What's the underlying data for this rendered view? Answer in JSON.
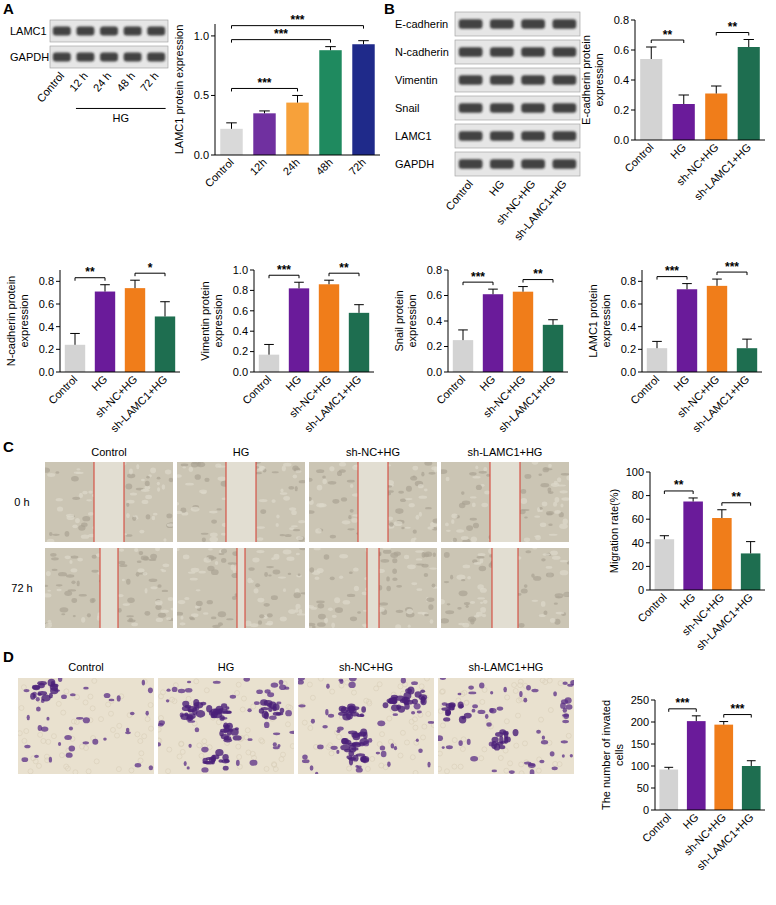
{
  "panel_labels": [
    "A",
    "B",
    "C",
    "D"
  ],
  "blots": [
    {
      "rows": [
        "LAMC1",
        "GAPDH"
      ],
      "lanes": [
        "Control",
        "12 h",
        "24 h",
        "48 h",
        "72 h"
      ],
      "group": {
        "label": "HG",
        "from": "12 h",
        "to": "72 h"
      }
    },
    {
      "rows": [
        "E-cadherin",
        "N-cadherin",
        "Vimentin",
        "Snail",
        "LAMC1",
        "GAPDH"
      ],
      "lanes": [
        "Control",
        "HG",
        "sh-NC+HG",
        "sh-LAMC1+HG"
      ]
    }
  ],
  "images": [
    {
      "type": "scratch",
      "columns": [
        "Control",
        "HG",
        "sh-NC+HG",
        "sh-LAMC1+HG"
      ],
      "rows": [
        "0 h",
        "72 h"
      ]
    },
    {
      "type": "transwell",
      "columns": [
        "Control",
        "HG",
        "sh-NC+HG",
        "sh-LAMC1+HG"
      ]
    }
  ],
  "chart_data": [
    {
      "type": "bar",
      "y_label": "LAMC1 protein expression",
      "categories": [
        "Control",
        "12h",
        "24h",
        "48h",
        "72h"
      ],
      "values": [
        0.22,
        0.35,
        0.44,
        0.88,
        0.93
      ],
      "errors": [
        0.05,
        0.02,
        0.06,
        0.03,
        0.03
      ],
      "colors": [
        "#d9d9d9",
        "#7030a0",
        "#f7a13a",
        "#1f8a5f",
        "#1f2a8a"
      ],
      "ylim": [
        0,
        1.1
      ],
      "yticks": [
        {
          "value": 0,
          "label": "0.0"
        },
        {
          "value": 0.5,
          "label": "0.5"
        },
        {
          "value": 1,
          "label": "1.0"
        }
      ],
      "significance": [
        {
          "between": [
            "Control",
            "24h"
          ],
          "label": "***"
        },
        {
          "between": [
            "Control",
            "48h"
          ],
          "label": "***"
        },
        {
          "between": [
            "Control",
            "72h"
          ],
          "label": "***"
        }
      ]
    },
    {
      "type": "bar",
      "y_label": "E-cadherin protein expression",
      "categories": [
        "Control",
        "HG",
        "sh-NC+HG",
        "sh-LAMC1+HG"
      ],
      "values": [
        0.54,
        0.24,
        0.31,
        0.62
      ],
      "errors": [
        0.08,
        0.06,
        0.05,
        0.05
      ],
      "colors": [
        "#d3d3d3",
        "#6a1b9a",
        "#f07d1a",
        "#1e6e50"
      ],
      "ylim": [
        0,
        0.8
      ],
      "yticks": [
        {
          "value": 0,
          "label": "0.0"
        },
        {
          "value": 0.2,
          "label": "0.2"
        },
        {
          "value": 0.4,
          "label": "0.4"
        },
        {
          "value": 0.6,
          "label": "0.6"
        },
        {
          "value": 0.8,
          "label": "0.8"
        }
      ],
      "significance": [
        {
          "between": [
            "Control",
            "HG"
          ],
          "label": "**"
        },
        {
          "between": [
            "sh-NC+HG",
            "sh-LAMC1+HG"
          ],
          "label": "**"
        }
      ]
    },
    {
      "type": "bar",
      "y_label": "N-cadherin protein expression",
      "categories": [
        "Control",
        "HG",
        "sh-NC+HG",
        "sh-LAMC1+HG"
      ],
      "values": [
        0.24,
        0.71,
        0.74,
        0.49
      ],
      "errors": [
        0.1,
        0.06,
        0.07,
        0.13
      ],
      "colors": [
        "#d3d3d3",
        "#6a1b9a",
        "#f07d1a",
        "#1e6e50"
      ],
      "ylim": [
        0,
        0.9
      ],
      "yticks": [
        {
          "value": 0,
          "label": "0.0"
        },
        {
          "value": 0.2,
          "label": "0.2"
        },
        {
          "value": 0.4,
          "label": "0.4"
        },
        {
          "value": 0.6,
          "label": "0.6"
        },
        {
          "value": 0.8,
          "label": "0.8"
        }
      ],
      "significance": [
        {
          "between": [
            "Control",
            "HG"
          ],
          "label": "**"
        },
        {
          "between": [
            "sh-NC+HG",
            "sh-LAMC1+HG"
          ],
          "label": "*"
        }
      ]
    },
    {
      "type": "bar",
      "y_label": "Vimentin protein expression",
      "categories": [
        "Control",
        "HG",
        "sh-NC+HG",
        "sh-LAMC1+HG"
      ],
      "values": [
        0.17,
        0.82,
        0.86,
        0.58
      ],
      "errors": [
        0.1,
        0.06,
        0.04,
        0.08
      ],
      "colors": [
        "#d3d3d3",
        "#6a1b9a",
        "#f07d1a",
        "#1e6e50"
      ],
      "ylim": [
        0,
        1
      ],
      "yticks": [
        {
          "value": 0,
          "label": "0.0"
        },
        {
          "value": 0.2,
          "label": "0.2"
        },
        {
          "value": 0.4,
          "label": "0.4"
        },
        {
          "value": 0.6,
          "label": "0.6"
        },
        {
          "value": 0.8,
          "label": "0.8"
        },
        {
          "value": 1,
          "label": "1.0"
        }
      ],
      "significance": [
        {
          "between": [
            "Control",
            "HG"
          ],
          "label": "***"
        },
        {
          "between": [
            "sh-NC+HG",
            "sh-LAMC1+HG"
          ],
          "label": "**"
        }
      ]
    },
    {
      "type": "bar",
      "y_label": "Snail protein expression",
      "categories": [
        "Control",
        "HG",
        "sh-NC+HG",
        "sh-LAMC1+HG"
      ],
      "values": [
        0.25,
        0.61,
        0.63,
        0.37
      ],
      "errors": [
        0.08,
        0.04,
        0.04,
        0.04
      ],
      "colors": [
        "#d3d3d3",
        "#6a1b9a",
        "#f07d1a",
        "#1e6e50"
      ],
      "ylim": [
        0,
        0.8
      ],
      "yticks": [
        {
          "value": 0,
          "label": "0.0"
        },
        {
          "value": 0.2,
          "label": "0.2"
        },
        {
          "value": 0.4,
          "label": "0.4"
        },
        {
          "value": 0.6,
          "label": "0.6"
        },
        {
          "value": 0.8,
          "label": "0.8"
        }
      ],
      "significance": [
        {
          "between": [
            "Control",
            "HG"
          ],
          "label": "***"
        },
        {
          "between": [
            "sh-NC+HG",
            "sh-LAMC1+HG"
          ],
          "label": "**"
        }
      ]
    },
    {
      "type": "bar",
      "y_label": "LAMC1 protein expression",
      "categories": [
        "Control",
        "HG",
        "sh-NC+HG",
        "sh-LAMC1+HG"
      ],
      "values": [
        0.21,
        0.73,
        0.76,
        0.21
      ],
      "errors": [
        0.06,
        0.05,
        0.06,
        0.08
      ],
      "colors": [
        "#d3d3d3",
        "#6a1b9a",
        "#f07d1a",
        "#1e6e50"
      ],
      "ylim": [
        0,
        0.9
      ],
      "yticks": [
        {
          "value": 0,
          "label": "0.0"
        },
        {
          "value": 0.2,
          "label": "0.2"
        },
        {
          "value": 0.4,
          "label": "0.4"
        },
        {
          "value": 0.6,
          "label": "0.6"
        },
        {
          "value": 0.8,
          "label": "0.8"
        }
      ],
      "significance": [
        {
          "between": [
            "Control",
            "HG"
          ],
          "label": "***"
        },
        {
          "between": [
            "sh-NC+HG",
            "sh-LAMC1+HG"
          ],
          "label": "***"
        }
      ]
    },
    {
      "type": "bar",
      "y_label": "Migration rate(%)",
      "categories": [
        "Control",
        "HG",
        "sh-NC+HG",
        "sh-LAMC1+HG"
      ],
      "values": [
        43,
        75,
        61,
        31
      ],
      "errors": [
        3,
        3,
        7,
        10
      ],
      "colors": [
        "#d3d3d3",
        "#6a1b9a",
        "#f07d1a",
        "#1e6e50"
      ],
      "ylim": [
        0,
        100
      ],
      "yticks": [
        0,
        20,
        40,
        60,
        80,
        100
      ],
      "significance": [
        {
          "between": [
            "Control",
            "HG"
          ],
          "label": "**"
        },
        {
          "between": [
            "sh-NC+HG",
            "sh-LAMC1+HG"
          ],
          "label": "**"
        }
      ]
    },
    {
      "type": "bar",
      "y_label": "The number of invated cells",
      "categories": [
        "Control",
        "HG",
        "sh-NC+HG",
        "sh-LAMC1+HG"
      ],
      "values": [
        92,
        202,
        194,
        100
      ],
      "errors": [
        5,
        12,
        7,
        12
      ],
      "colors": [
        "#d3d3d3",
        "#6a1b9a",
        "#f07d1a",
        "#1e6e50"
      ],
      "ylim": [
        0,
        250
      ],
      "yticks": [
        0,
        50,
        100,
        150,
        200,
        250
      ],
      "significance": [
        {
          "between": [
            "Control",
            "HG"
          ],
          "label": "***"
        },
        {
          "between": [
            "sh-NC+HG",
            "sh-LAMC1+HG"
          ],
          "label": "***"
        }
      ]
    }
  ]
}
